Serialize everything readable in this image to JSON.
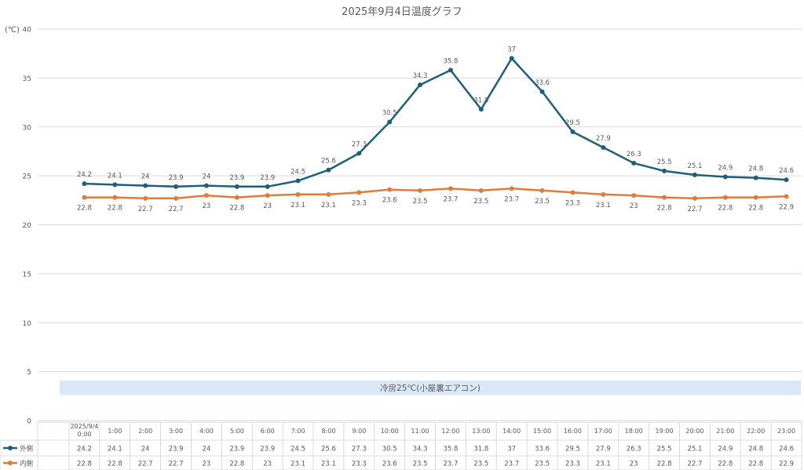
{
  "chart_data": {
    "type": "line",
    "title": "2025年9月4日温度グラフ",
    "ylabel": "(℃)",
    "ylim": [
      0,
      40
    ],
    "yticks": [
      "0",
      "5",
      "10",
      "15",
      "20",
      "25",
      "30",
      "35",
      "40"
    ],
    "grid": true,
    "legend": "table-bottom",
    "categories": [
      "2025/9/4 0:00",
      "1:00",
      "2:00",
      "3:00",
      "4:00",
      "5:00",
      "6:00",
      "7:00",
      "8:00",
      "9:00",
      "10:00",
      "11:00",
      "12:00",
      "13:00",
      "14:00",
      "15:00",
      "16:00",
      "17:00",
      "18:00",
      "19:00",
      "20:00",
      "21:00",
      "22:00",
      "23:00"
    ],
    "series": [
      {
        "name": "外側",
        "color": "#1f5f7a",
        "values": [
          24.2,
          24.1,
          24,
          23.9,
          24,
          23.9,
          23.9,
          24.5,
          25.6,
          27.3,
          30.5,
          34.3,
          35.8,
          31.8,
          37,
          33.6,
          29.5,
          27.9,
          26.3,
          25.5,
          25.1,
          24.9,
          24.8,
          24.6
        ]
      },
      {
        "name": "内側",
        "color": "#e07b39",
        "values": [
          22.8,
          22.8,
          22.7,
          22.7,
          23,
          22.8,
          23,
          23.1,
          23.1,
          23.3,
          23.6,
          23.5,
          23.7,
          23.5,
          23.7,
          23.5,
          23.3,
          23.1,
          23,
          22.8,
          22.7,
          22.8,
          22.8,
          22.9
        ]
      }
    ],
    "annotation": {
      "text": "冷房25℃(小屋裏エアコン)",
      "fill": "#dae8f5"
    }
  }
}
